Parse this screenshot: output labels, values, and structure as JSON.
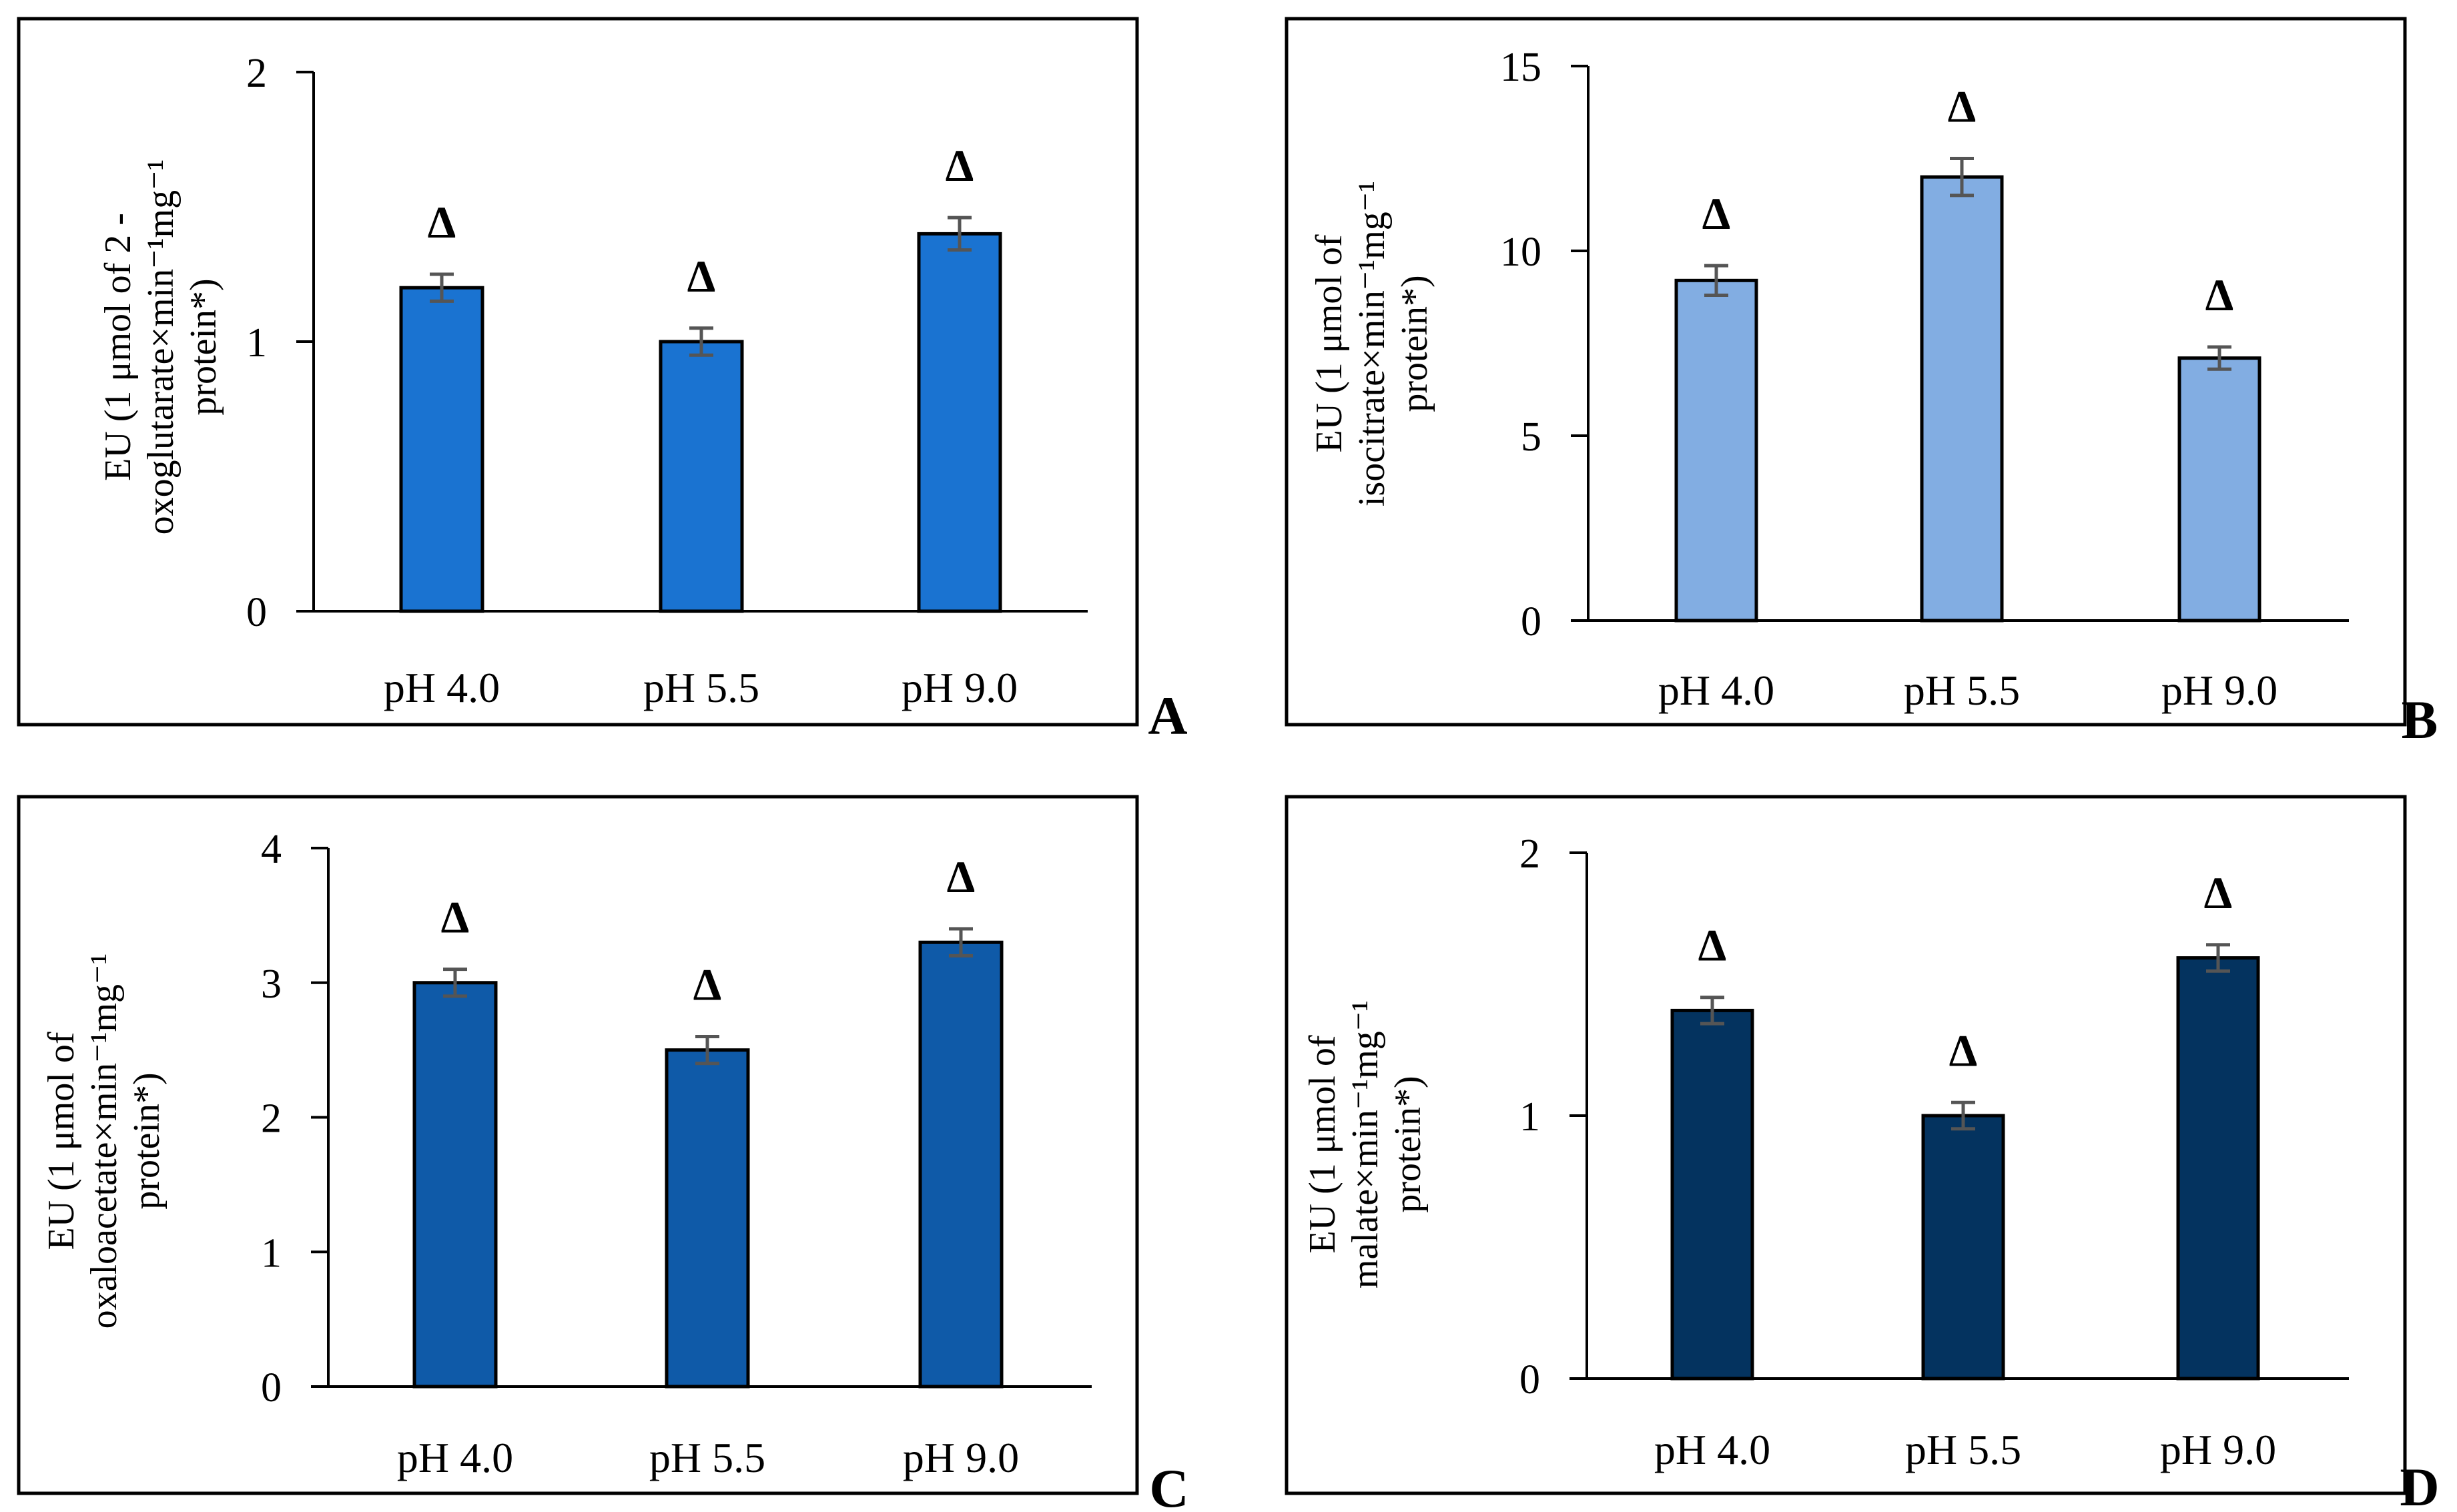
{
  "chart_data": [
    {
      "panel": "A",
      "type": "bar",
      "categories": [
        "pH 4.0",
        "pH 5.5",
        "pH 9.0"
      ],
      "values": [
        1.2,
        1.0,
        1.4
      ],
      "errors": [
        0.05,
        0.05,
        0.06
      ],
      "annotations": [
        "Δ",
        "Δ",
        "Δ"
      ],
      "ylim": [
        0,
        2
      ],
      "yticks": [
        "0",
        "1",
        "2"
      ],
      "ylabel_lines": [
        "EU (1 μmol  of 2 -",
        "oxoglutarate×min⁻¹mg⁻¹",
        "protein*)"
      ],
      "bar_color": "#1a73d1",
      "grid": false
    },
    {
      "panel": "B",
      "type": "bar",
      "categories": [
        "pH 4.0",
        "pH 5.5",
        "pH 9.0"
      ],
      "values": [
        9.2,
        12.0,
        7.1
      ],
      "errors": [
        0.4,
        0.5,
        0.3
      ],
      "annotations": [
        "Δ",
        "Δ",
        "Δ"
      ],
      "ylim": [
        0,
        15
      ],
      "yticks": [
        "0",
        "5",
        "10",
        "15"
      ],
      "ylabel_lines": [
        "EU (1 μmol  of",
        "isocitrate×min⁻¹mg⁻¹",
        "protein*)"
      ],
      "bar_color": "#82ade2",
      "grid": false
    },
    {
      "panel": "C",
      "type": "bar",
      "categories": [
        "pH 4.0",
        "pH 5.5",
        "pH 9.0"
      ],
      "values": [
        3.0,
        2.5,
        3.3
      ],
      "errors": [
        0.1,
        0.1,
        0.1
      ],
      "annotations": [
        "Δ",
        "Δ",
        "Δ"
      ],
      "ylim": [
        0,
        4
      ],
      "yticks": [
        "0",
        "1",
        "2",
        "3",
        "4"
      ],
      "ylabel_lines": [
        "EU (1 μmol  of",
        "oxaloacetate×min⁻¹mg⁻¹",
        "protein*)"
      ],
      "bar_color": "#0f5aa8",
      "grid": false
    },
    {
      "panel": "D",
      "type": "bar",
      "categories": [
        "pH 4.0",
        "pH 5.5",
        "pH 9.0"
      ],
      "values": [
        1.4,
        1.0,
        1.6
      ],
      "errors": [
        0.05,
        0.05,
        0.05
      ],
      "annotations": [
        "Δ",
        "Δ",
        "Δ"
      ],
      "ylim": [
        0,
        2
      ],
      "yticks": [
        "0",
        "1",
        "2"
      ],
      "ylabel_lines": [
        "EU (1 μmol  of",
        "malate×min⁻¹mg⁻¹",
        "protein*)"
      ],
      "bar_color": "#04335f",
      "grid": false
    }
  ]
}
